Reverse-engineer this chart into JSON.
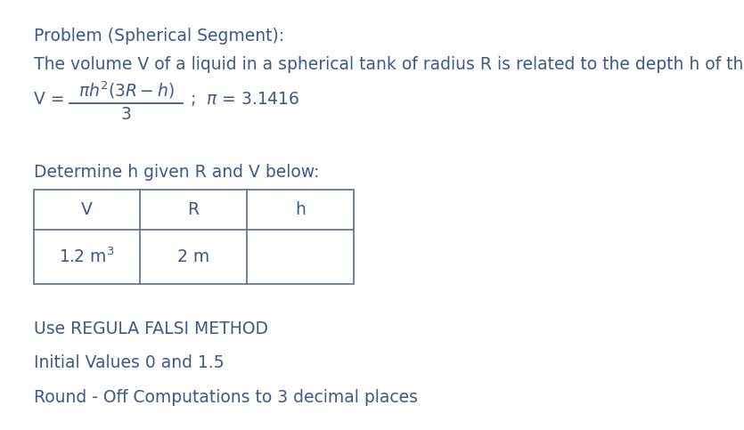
{
  "title": "Problem (Spherical Segment):",
  "line1": "The volume V of a liquid in a spherical tank of radius R is related to the depth h of the liquid by",
  "determine_text": "Determine h given R and V below:",
  "table_headers": [
    "V",
    "R",
    "h"
  ],
  "table_row_v": "1.2 m",
  "table_row_r": "2 m",
  "method_text": "Use REGULA FALSI METHOD",
  "initial_text": "Initial Values 0 and 1.5",
  "round_text": "Round - Off Computations to 3 decimal places",
  "text_color": "#3b5a8a",
  "bg_color": "#ffffff",
  "font_size": 13.5,
  "table_color": "#5a6e8a"
}
